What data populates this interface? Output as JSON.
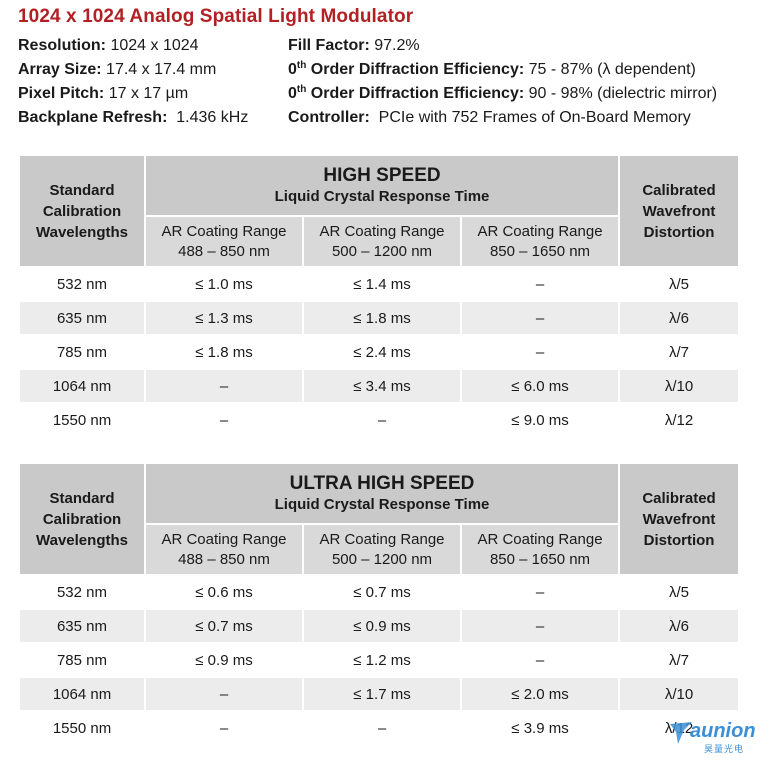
{
  "title": "1024 x 1024 Analog Spatial Light Modulator",
  "specs": [
    {
      "label": "Resolution",
      "sep": ": ",
      "value": "1024 x 1024"
    },
    {
      "label": "Array Size",
      "sep": ": ",
      "value": "17.4 x 17.4 mm"
    },
    {
      "label": "Pixel Pitch",
      "sep": ": ",
      "value": "17 x 17 µm"
    },
    {
      "label": "Backplane Refresh",
      "sep": ":  ",
      "value": "1.436 kHz"
    },
    {
      "label": "Fill Factor",
      "sep": ": ",
      "value": "97.2%"
    },
    {
      "pre": "0",
      "sup": "th",
      "label": " Order Diffraction Efficiency",
      "sep": ": ",
      "value": "75 - 87% (λ dependent)"
    },
    {
      "pre": "0",
      "sup": "th",
      "label": " Order Diffraction Efficiency",
      "sep": ": ",
      "value": "90 - 98% (dielectric mirror)"
    },
    {
      "label": "Controller",
      "sep": ":  ",
      "value": "PCIe with 752 Frames of On-Board Memory"
    }
  ],
  "tables": [
    {
      "heading": "HIGH SPEED",
      "subheading": "Liquid Crystal Response Time",
      "left_header": "Standard Calibration Wavelengths",
      "right_header": "Calibrated Wavefront Distortion",
      "ranges": [
        {
          "line1": "AR Coating Range",
          "line2": "488 – 850 nm"
        },
        {
          "line1": "AR Coating Range",
          "line2": "500 – 1200 nm"
        },
        {
          "line1": "AR Coating Range",
          "line2": "850 – 1650 nm"
        }
      ],
      "rows": [
        [
          "532 nm",
          "≤ 1.0 ms",
          "≤ 1.4 ms",
          "–",
          "λ/5"
        ],
        [
          "635 nm",
          "≤ 1.3 ms",
          "≤ 1.8 ms",
          "–",
          "λ/6"
        ],
        [
          "785 nm",
          "≤ 1.8 ms",
          "≤ 2.4 ms",
          "–",
          "λ/7"
        ],
        [
          "1064 nm",
          "–",
          "≤ 3.4 ms",
          "≤ 6.0 ms",
          "λ/10"
        ],
        [
          "1550 nm",
          "–",
          "–",
          "≤ 9.0 ms",
          "λ/12"
        ]
      ]
    },
    {
      "heading": "ULTRA HIGH SPEED",
      "subheading": "Liquid Crystal Response Time",
      "left_header": "Standard Calibration Wavelengths",
      "right_header": "Calibrated Wavefront Distortion",
      "ranges": [
        {
          "line1": "AR Coating Range",
          "line2": "488 – 850 nm"
        },
        {
          "line1": "AR Coating Range",
          "line2": "500 – 1200 nm"
        },
        {
          "line1": "AR Coating Range",
          "line2": "850 – 1650 nm"
        }
      ],
      "rows": [
        [
          "532 nm",
          "≤ 0.6 ms",
          "≤ 0.7 ms",
          "–",
          "λ/5"
        ],
        [
          "635 nm",
          "≤ 0.7 ms",
          "≤ 0.9 ms",
          "–",
          "λ/6"
        ],
        [
          "785 nm",
          "≤ 0.9 ms",
          "≤ 1.2 ms",
          "–",
          "λ/7"
        ],
        [
          "1064 nm",
          "–",
          "≤ 1.7 ms",
          "≤ 2.0 ms",
          "λ/10"
        ],
        [
          "1550 nm",
          "–",
          "–",
          "≤ 3.9 ms",
          "λ/12"
        ]
      ]
    }
  ],
  "watermark": {
    "brand": "aunion",
    "sub": "昊量光电"
  },
  "colors": {
    "title": "#b32024",
    "header": "#c9c9c9",
    "stripe": "#ececec",
    "watermark": "#3a8fd6"
  }
}
